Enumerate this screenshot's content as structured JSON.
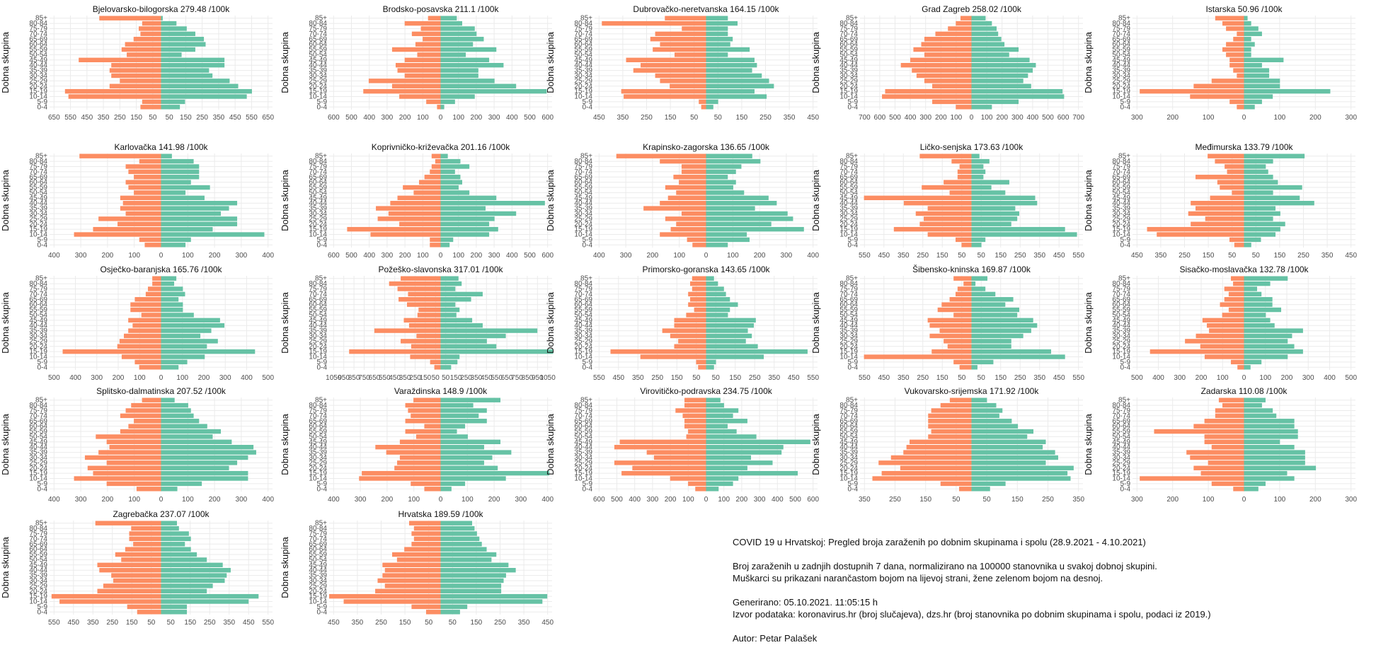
{
  "colors": {
    "male": "#FC8D62",
    "female": "#66C2A5",
    "grid": "#EBEBEB",
    "text": "#4D4D4D"
  },
  "age_groups": [
    "0-4",
    "5-9",
    "10-14",
    "15-19",
    "20-24",
    "25-29",
    "30-34",
    "35-39",
    "40-44",
    "45-49",
    "50-54",
    "55-59",
    "60-64",
    "65-69",
    "70-74",
    "75-79",
    "80-84",
    "85+"
  ],
  "ylabel": "Dobna skupina",
  "footer": {
    "title": "COVID 19 u Hrvatskoj: Pregled broja zaraženih po dobnim skupinama i spolu (28.9.2021 - 4.10.2021)",
    "line1": "Broj zaraženih u zadnjih dostupnih 7 dana, normalizirano na 100000 stanovnika u svakoj dobnoj skupini.",
    "line2": "Muškarci su prikazani narančastom bojom na lijevoj strani, žene zelenom bojom na desnoj.",
    "generated": "Generirano: 05.10.2021. 11:05:15 h",
    "source": "Izvor podataka: koronavirus.hr (broj slučajeva), dzs.hr (broj stanovnika po dobnim skupinama i spolu, podaci iz 2019.)",
    "author": "Autor: Petar Palašek"
  },
  "chart_data": [
    {
      "type": "bar",
      "title": "Bjelovarsko-bilogorska 279.48 /100k",
      "xticks": [
        "650",
        "550",
        "450",
        "350",
        "250",
        "150",
        "50",
        "50",
        "150",
        "250",
        "350",
        "450",
        "550",
        "650"
      ],
      "xlim": [
        -650,
        650
      ],
      "male": [
        120,
        110,
        540,
        560,
        300,
        240,
        290,
        300,
        290,
        480,
        200,
        230,
        210,
        160,
        120,
        130,
        110,
        360
      ],
      "female": [
        110,
        140,
        500,
        530,
        450,
        400,
        300,
        280,
        370,
        370,
        120,
        200,
        260,
        250,
        200,
        150,
        90,
        10
      ]
    },
    {
      "type": "bar",
      "title": "Brodsko-posavska 211.1 /100k",
      "xticks": [
        "600",
        "500",
        "400",
        "300",
        "200",
        "100",
        "0",
        "100",
        "200",
        "300",
        "400",
        "500",
        "600"
      ],
      "xlim": [
        -620,
        620
      ],
      "male": [
        20,
        80,
        230,
        430,
        270,
        400,
        200,
        240,
        250,
        200,
        130,
        270,
        140,
        100,
        160,
        110,
        200,
        70
      ],
      "female": [
        20,
        80,
        190,
        590,
        420,
        300,
        210,
        210,
        350,
        270,
        140,
        310,
        180,
        240,
        200,
        190,
        120,
        90
      ]
    },
    {
      "type": "bar",
      "title": "Dubrovačko-neretvanska 164.15 /100k",
      "xticks": [
        "450",
        "350",
        "250",
        "150",
        "50",
        "50",
        "150",
        "250",
        "350",
        "450"
      ],
      "xlim": [
        -460,
        460
      ],
      "male": [
        20,
        30,
        340,
        350,
        150,
        190,
        210,
        300,
        270,
        330,
        130,
        220,
        190,
        230,
        210,
        100,
        430,
        170
      ],
      "female": [
        30,
        50,
        250,
        200,
        280,
        260,
        230,
        190,
        210,
        200,
        90,
        180,
        100,
        110,
        90,
        90,
        130,
        90
      ]
    },
    {
      "type": "bar",
      "title": "Grad Zagreb 258.02 /100k",
      "xticks": [
        "700",
        "600",
        "500",
        "400",
        "300",
        "200",
        "100",
        "0",
        "100",
        "200",
        "300",
        "400",
        "500",
        "600",
        "700"
      ],
      "xlim": [
        -710,
        710
      ],
      "male": [
        100,
        250,
        570,
        550,
        250,
        300,
        350,
        380,
        450,
        390,
        300,
        370,
        320,
        300,
        230,
        150,
        100,
        70
      ],
      "female": [
        130,
        300,
        590,
        580,
        380,
        330,
        360,
        390,
        410,
        370,
        240,
        300,
        210,
        190,
        170,
        160,
        130,
        90
      ]
    },
    {
      "type": "bar",
      "title": "Istarska 50.96 /100k",
      "xticks": [
        "300",
        "200",
        "100",
        "0",
        "100",
        "200",
        "300"
      ],
      "xlim": [
        -310,
        310
      ],
      "male": [
        20,
        40,
        150,
        290,
        140,
        90,
        20,
        30,
        40,
        40,
        50,
        60,
        50,
        30,
        20,
        50,
        60,
        80
      ],
      "female": [
        30,
        50,
        80,
        240,
        100,
        100,
        70,
        70,
        50,
        110,
        20,
        20,
        30,
        20,
        50,
        40,
        20,
        10
      ]
    },
    {
      "type": "bar",
      "title": "Karlovačka 141.98 /100k",
      "xticks": [
        "400",
        "300",
        "200",
        "100",
        "0",
        "100",
        "200",
        "300",
        "400"
      ],
      "xlim": [
        -410,
        410
      ],
      "male": [
        60,
        80,
        320,
        250,
        160,
        230,
        130,
        150,
        140,
        150,
        100,
        120,
        130,
        100,
        120,
        130,
        80,
        300
      ],
      "female": [
        90,
        110,
        380,
        190,
        280,
        280,
        220,
        250,
        280,
        160,
        90,
        180,
        110,
        140,
        140,
        140,
        120,
        40
      ]
    },
    {
      "type": "bar",
      "title": "Koprivničko-križevačka 201.16 /100k",
      "xticks": [
        "600",
        "500",
        "400",
        "300",
        "200",
        "100",
        "0",
        "100",
        "200",
        "300",
        "400",
        "500",
        "600"
      ],
      "xlim": [
        -620,
        620
      ],
      "male": [
        60,
        60,
        390,
        520,
        230,
        350,
        290,
        360,
        280,
        240,
        150,
        210,
        120,
        90,
        60,
        50,
        30,
        50
      ],
      "female": [
        50,
        70,
        270,
        320,
        270,
        300,
        420,
        250,
        580,
        310,
        160,
        100,
        120,
        110,
        80,
        160,
        110,
        40
      ]
    },
    {
      "type": "bar",
      "title": "Krapinsko-zagorska 136.65 /100k",
      "xticks": [
        "400",
        "300",
        "200",
        "100",
        "0",
        "100",
        "200",
        "300",
        "400"
      ],
      "xlim": [
        -410,
        410
      ],
      "male": [
        50,
        70,
        170,
        130,
        110,
        150,
        90,
        230,
        170,
        140,
        110,
        150,
        100,
        120,
        90,
        90,
        170,
        330
      ],
      "female": [
        80,
        160,
        150,
        360,
        240,
        320,
        300,
        180,
        260,
        230,
        140,
        100,
        110,
        80,
        110,
        130,
        200,
        170
      ]
    },
    {
      "type": "bar",
      "title": "Ličko-senjska 173.63 /100k",
      "xticks": [
        "550",
        "450",
        "350",
        "250",
        "150",
        "50",
        "50",
        "150",
        "250",
        "350",
        "450",
        "550"
      ],
      "xlim": [
        -560,
        560
      ],
      "male": [
        50,
        80,
        220,
        390,
        260,
        240,
        280,
        220,
        340,
        540,
        110,
        250,
        140,
        70,
        70,
        60,
        100,
        260
      ],
      "female": [
        50,
        70,
        530,
        470,
        200,
        230,
        240,
        220,
        330,
        320,
        170,
        100,
        190,
        60,
        70,
        60,
        90,
        40
      ]
    },
    {
      "type": "bar",
      "title": "Međimurska 133.79 /100k",
      "xticks": [
        "450",
        "350",
        "250",
        "150",
        "50",
        "50",
        "150",
        "250",
        "350",
        "450"
      ],
      "xlim": [
        -460,
        460
      ],
      "male": [
        40,
        60,
        360,
        400,
        220,
        160,
        230,
        200,
        220,
        140,
        50,
        100,
        110,
        200,
        70,
        80,
        120,
        150
      ],
      "female": [
        30,
        70,
        130,
        150,
        170,
        120,
        150,
        130,
        290,
        230,
        120,
        240,
        140,
        120,
        100,
        90,
        120,
        250
      ]
    },
    {
      "type": "bar",
      "title": "Osječko-baranjska 165.76 /100k",
      "xticks": [
        "500",
        "400",
        "300",
        "200",
        "100",
        "0",
        "100",
        "200",
        "300",
        "400",
        "500"
      ],
      "xlim": [
        -510,
        510
      ],
      "male": [
        100,
        120,
        180,
        450,
        200,
        190,
        170,
        150,
        130,
        150,
        90,
        140,
        140,
        120,
        70,
        60,
        40,
        40
      ],
      "female": [
        80,
        120,
        200,
        430,
        210,
        260,
        180,
        230,
        290,
        270,
        150,
        100,
        100,
        80,
        110,
        100,
        60,
        70
      ]
    },
    {
      "type": "bar",
      "title": "Požeško-slavonska 317.01 /100k",
      "xticks": [
        "1050",
        "950",
        "850",
        "750",
        "650",
        "550",
        "450",
        "350",
        "250",
        "150",
        "50",
        "50",
        "150",
        "250",
        "350",
        "450",
        "550",
        "650",
        "750",
        "850",
        "950",
        "1050"
      ],
      "xlim": [
        -1060,
        1060
      ],
      "male": [
        60,
        100,
        290,
        870,
        280,
        380,
        230,
        630,
        300,
        350,
        220,
        210,
        320,
        400,
        310,
        410,
        490,
        380
      ],
      "female": [
        100,
        160,
        180,
        1070,
        530,
        440,
        620,
        920,
        400,
        300,
        150,
        180,
        140,
        290,
        400,
        140,
        200,
        170
      ]
    },
    {
      "type": "bar",
      "title": "Primorsko-goranska 143.65 /100k",
      "xticks": [
        "550",
        "450",
        "350",
        "250",
        "150",
        "50",
        "50",
        "150",
        "250",
        "350",
        "450",
        "550"
      ],
      "xlim": [
        -560,
        560
      ],
      "male": [
        40,
        50,
        330,
        480,
        160,
        140,
        180,
        220,
        160,
        160,
        100,
        60,
        90,
        80,
        90,
        70,
        80,
        70
      ],
      "female": [
        40,
        50,
        290,
        510,
        260,
        200,
        230,
        210,
        240,
        250,
        110,
        120,
        160,
        120,
        100,
        90,
        60,
        40
      ]
    },
    {
      "type": "bar",
      "title": "Šibensko-kninska 169.87 /100k",
      "xticks": [
        "550",
        "450",
        "350",
        "250",
        "150",
        "50",
        "50",
        "150",
        "250",
        "350",
        "450",
        "550"
      ],
      "xlim": [
        -560,
        560
      ],
      "male": [
        60,
        90,
        540,
        200,
        120,
        140,
        210,
        160,
        210,
        220,
        90,
        170,
        150,
        110,
        80,
        70,
        40,
        90
      ],
      "female": [
        30,
        110,
        470,
        400,
        200,
        200,
        260,
        300,
        330,
        310,
        230,
        240,
        170,
        210,
        120,
        70,
        20,
        80
      ]
    },
    {
      "type": "bar",
      "title": "Sisačko-moslavačka 132.78 /100k",
      "xticks": [
        "500",
        "400",
        "300",
        "200",
        "100",
        "0",
        "100",
        "200",
        "300",
        "400",
        "500"
      ],
      "xlim": [
        -510,
        510
      ],
      "male": [
        30,
        60,
        180,
        430,
        200,
        270,
        220,
        160,
        170,
        190,
        100,
        70,
        110,
        90,
        70,
        90,
        50,
        60
      ],
      "female": [
        30,
        80,
        200,
        270,
        230,
        200,
        220,
        270,
        140,
        120,
        100,
        170,
        130,
        130,
        80,
        60,
        120,
        200
      ]
    },
    {
      "type": "bar",
      "title": "Splitsko-dalmatinska 207.52 /100k",
      "xticks": [
        "400",
        "300",
        "200",
        "100",
        "0",
        "100",
        "200",
        "300",
        "400"
      ],
      "xlim": [
        -410,
        410
      ],
      "male": [
        90,
        200,
        320,
        250,
        270,
        200,
        280,
        230,
        190,
        200,
        240,
        150,
        120,
        100,
        150,
        130,
        110,
        70
      ],
      "female": [
        60,
        150,
        320,
        320,
        250,
        280,
        320,
        350,
        340,
        260,
        190,
        220,
        170,
        140,
        120,
        110,
        100,
        50
      ]
    },
    {
      "type": "bar",
      "title": "Varaždinska 148.9 /100k",
      "xticks": [
        "400",
        "300",
        "200",
        "100",
        "0",
        "100",
        "200",
        "300",
        "400"
      ],
      "xlim": [
        -410,
        410
      ],
      "male": [
        60,
        110,
        300,
        290,
        170,
        160,
        150,
        200,
        240,
        150,
        90,
        130,
        60,
        130,
        110,
        120,
        130,
        100
      ],
      "female": [
        40,
        90,
        240,
        400,
        210,
        160,
        190,
        260,
        160,
        220,
        100,
        60,
        90,
        170,
        140,
        170,
        120,
        220
      ]
    },
    {
      "type": "bar",
      "title": "Virovitičko-podravska 234.75 /100k",
      "xticks": [
        "600",
        "500",
        "400",
        "300",
        "200",
        "100",
        "0",
        "100",
        "200",
        "300",
        "400",
        "500",
        "600"
      ],
      "xlim": [
        -620,
        620
      ],
      "male": [
        60,
        100,
        200,
        470,
        410,
        510,
        290,
        330,
        510,
        480,
        110,
        100,
        120,
        120,
        130,
        170,
        120,
        120
      ],
      "female": [
        70,
        150,
        180,
        510,
        230,
        370,
        250,
        420,
        430,
        580,
        280,
        170,
        120,
        230,
        150,
        180,
        100,
        80
      ]
    },
    {
      "type": "bar",
      "title": "Vukovarsko-srijemska 171.92 /100k",
      "xticks": [
        "350",
        "250",
        "150",
        "50",
        "50",
        "150",
        "250",
        "350"
      ],
      "xlim": [
        -360,
        360
      ],
      "male": [
        40,
        100,
        320,
        290,
        230,
        300,
        260,
        220,
        210,
        200,
        140,
        130,
        140,
        140,
        140,
        130,
        100,
        70
      ],
      "female": [
        60,
        110,
        320,
        310,
        330,
        240,
        280,
        270,
        230,
        240,
        180,
        200,
        150,
        130,
        90,
        100,
        80,
        50
      ]
    },
    {
      "type": "bar",
      "title": "Zadarska 110.08 /100k",
      "xticks": [
        "300",
        "200",
        "100",
        "0",
        "100",
        "200",
        "300"
      ],
      "xlim": [
        -310,
        310
      ],
      "male": [
        30,
        90,
        290,
        120,
        140,
        100,
        150,
        160,
        90,
        110,
        110,
        250,
        140,
        110,
        80,
        80,
        60,
        70
      ],
      "female": [
        40,
        60,
        140,
        120,
        200,
        170,
        170,
        170,
        140,
        100,
        150,
        150,
        140,
        140,
        90,
        80,
        50,
        60
      ]
    },
    {
      "type": "bar",
      "title": "Zagrebačka 237.07 /100k",
      "xticks": [
        "550",
        "450",
        "350",
        "250",
        "150",
        "50",
        "50",
        "150",
        "250",
        "350",
        "450",
        "550"
      ],
      "xlim": [
        -560,
        560
      ],
      "male": [
        120,
        170,
        510,
        550,
        320,
        290,
        240,
        250,
        310,
        320,
        200,
        230,
        180,
        140,
        160,
        160,
        150,
        330
      ],
      "female": [
        130,
        130,
        440,
        490,
        230,
        260,
        320,
        330,
        350,
        310,
        230,
        180,
        150,
        120,
        150,
        140,
        90,
        80
      ]
    },
    {
      "type": "bar",
      "title": "Hrvatska 189.59 /100k",
      "xticks": [
        "450",
        "350",
        "250",
        "150",
        "50",
        "50",
        "150",
        "250",
        "350",
        "450"
      ],
      "xlim": [
        -460,
        460
      ],
      "male": [
        60,
        120,
        400,
        460,
        270,
        230,
        260,
        240,
        230,
        240,
        180,
        200,
        150,
        120,
        110,
        120,
        110,
        130
      ],
      "female": [
        80,
        110,
        420,
        440,
        250,
        250,
        260,
        270,
        310,
        280,
        210,
        230,
        190,
        170,
        160,
        150,
        140,
        130
      ]
    }
  ]
}
